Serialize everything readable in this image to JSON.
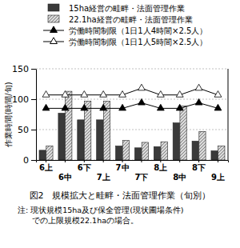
{
  "chart_data": {
    "type": "bar",
    "title": "図2　規模拡大と畦畔・法面管理作業（旬別）",
    "annotations": [
      "注: 現状規模15ha及び保全管理(現状圃場条件)",
      "での上限規模22.1haの場合。"
    ],
    "y_label": "作業時間(時間/旬)",
    "categories": [
      "6上",
      "6中",
      "6下",
      "7上",
      "7中",
      "7下",
      "8上",
      "8中",
      "8下",
      "9上"
    ],
    "series": [
      {
        "name": "15ha経営の畦畔・法面管理作業",
        "type": "bar",
        "color": "#3a3a3a",
        "values": [
          16,
          77,
          66,
          66,
          23,
          20,
          22,
          61,
          31,
          15
        ]
      },
      {
        "name": "22.1ha経営の畦畔・法面管理作業",
        "type": "bar",
        "color": "#d9d9d9",
        "values": [
          23,
          113,
          97,
          97,
          32,
          29,
          30,
          89,
          47,
          23
        ]
      },
      {
        "name": "労働時間制限（1日1人4時間×2.5人）",
        "type": "line",
        "color": "#000000",
        "marker": "triangle",
        "values": [
          85,
          85,
          85,
          85,
          85,
          94,
          85,
          85,
          94,
          85
        ]
      },
      {
        "name": "労働時間制限（1日1人5時間×2.5人）",
        "type": "line",
        "color": "#000000",
        "marker": "triangle-open",
        "values": [
          107,
          107,
          107,
          107,
          107,
          118,
          107,
          107,
          118,
          107
        ]
      }
    ],
    "ylim": [
      0,
      150
    ],
    "yticks": [
      0,
      50,
      100,
      150
    ],
    "grid": true
  }
}
